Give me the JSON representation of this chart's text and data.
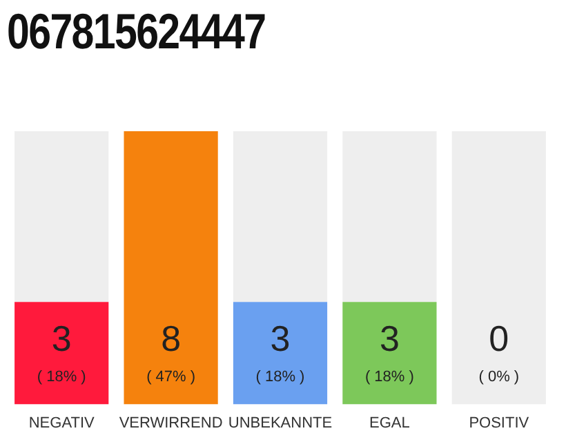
{
  "chart_data": {
    "type": "bar",
    "title": "067815624447",
    "categories": [
      "NEGATIV",
      "VERWIRREND",
      "UNBEKANNTE",
      "EGAL",
      "POSITIV"
    ],
    "stacked": true,
    "series": [
      {
        "colors": [
          "#ff1a3c",
          "#f5820d",
          "#6aa0f0",
          "#7dc85a",
          "#cccccc"
        ],
        "values": [
          3,
          8,
          3,
          3,
          0
        ],
        "value_labels": [
          "3",
          "8",
          "3",
          "3",
          null
        ]
      },
      {
        "color": "#eeeeee",
        "values": [
          5,
          0,
          5,
          5,
          8
        ]
      }
    ],
    "annotations": [
      "( 18% )",
      "( 47% )",
      "( 18% )",
      "( 18% )",
      "( 0% )",
      "0"
    ],
    "grid": false,
    "legend": false
  }
}
